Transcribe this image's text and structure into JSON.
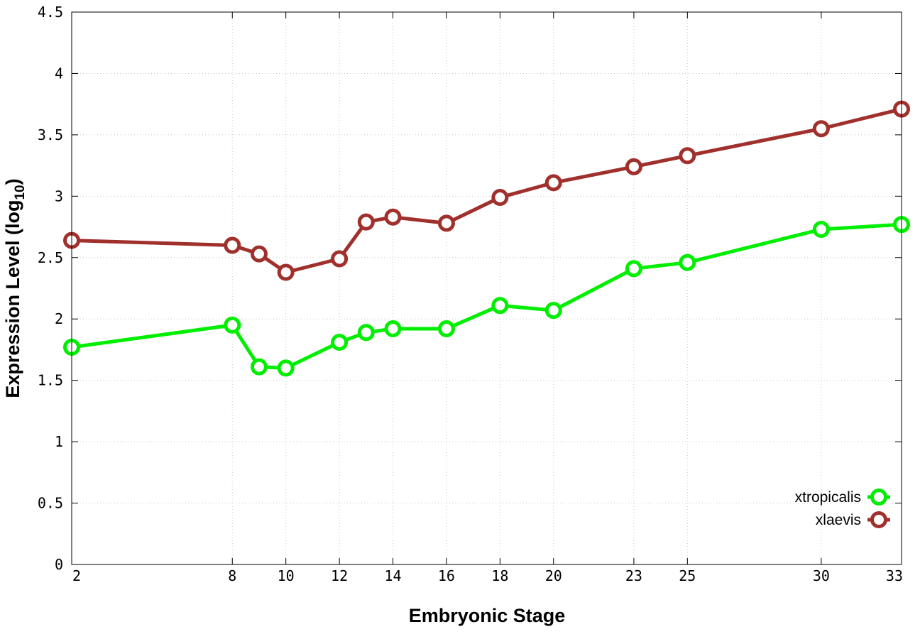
{
  "chart_data": {
    "type": "line",
    "xlabel": "Embryonic Stage",
    "ylabel": "Expression Level (log",
    "ylabel_subscript": "10",
    "ylabel_close": ")",
    "x_ticks": [
      2,
      8,
      10,
      12,
      14,
      16,
      18,
      20,
      23,
      25,
      30,
      33
    ],
    "y_ticks": [
      "0",
      "0.5",
      "1",
      "1.5",
      "2",
      "2.5",
      "3",
      "3.5",
      "4",
      "4.5"
    ],
    "xlim": [
      2,
      33
    ],
    "ylim": [
      0,
      4.5
    ],
    "grid": true,
    "legend_position": "bottom-right",
    "x": [
      2,
      8,
      9,
      10,
      12,
      13,
      14,
      16,
      18,
      20,
      23,
      25,
      30,
      33
    ],
    "series": [
      {
        "name": "xtropicalis",
        "color": "#00ee00",
        "marker": "open-circle",
        "values": [
          1.77,
          1.95,
          1.61,
          1.6,
          1.81,
          1.89,
          1.92,
          1.92,
          2.11,
          2.07,
          2.41,
          2.46,
          2.73,
          2.77
        ]
      },
      {
        "name": "xlaevis",
        "color": "#a0302c",
        "marker": "open-circle",
        "values": [
          2.64,
          2.6,
          2.53,
          2.38,
          2.49,
          2.79,
          2.83,
          2.78,
          2.99,
          3.11,
          3.24,
          3.33,
          3.55,
          3.71
        ]
      }
    ]
  }
}
